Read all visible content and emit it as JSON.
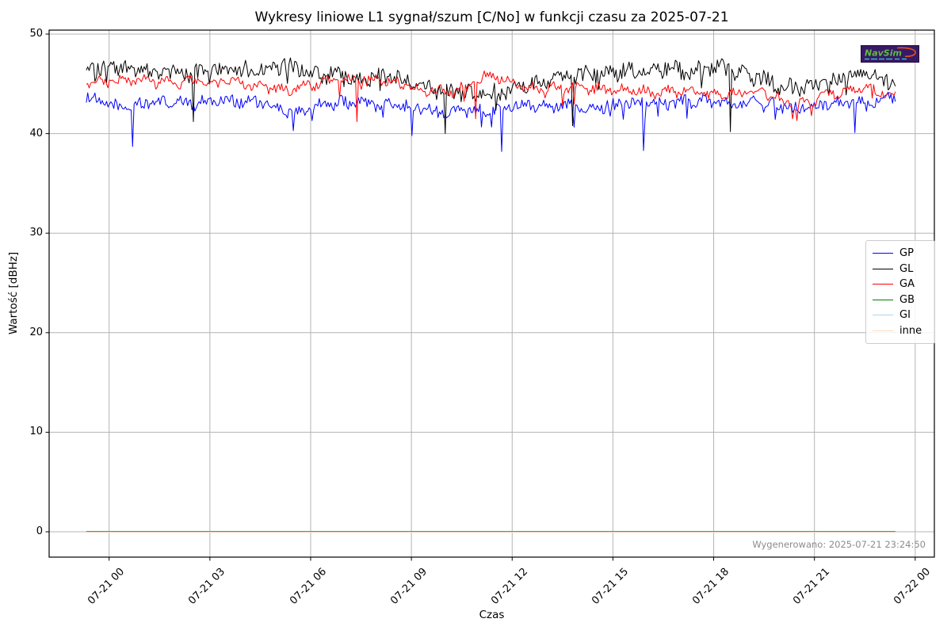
{
  "title": "Wykresy liniowe L1 sygnał/szum [C/No] w funkcji czasu za 2025-07-21",
  "xlabel": "Czas",
  "ylabel": "Wartość [dBHz]",
  "footnote": "Wygenerowano: 2025-07-21 23:24:50",
  "logo": {
    "name": "NavSim"
  },
  "axes": {
    "yticks": [
      0,
      10,
      20,
      30,
      40,
      50
    ],
    "xtick_hours": [
      0,
      3,
      6,
      9,
      12,
      15,
      18,
      21,
      24
    ],
    "xtick_labels": [
      "07-21 00",
      "07-21 03",
      "07-21 06",
      "07-21 09",
      "07-21 12",
      "07-21 15",
      "07-21 18",
      "07-21 21",
      "07-22 00"
    ],
    "ylim": [
      -2.6,
      50.4
    ],
    "grid": true,
    "grid_color": "#b4b4b4"
  },
  "legend": {
    "position": "center-right",
    "entries": [
      {
        "label": "GP",
        "color": "#0000ff"
      },
      {
        "label": "GL",
        "color": "#000000"
      },
      {
        "label": "GA",
        "color": "#ff0000"
      },
      {
        "label": "GB",
        "color": "#008000"
      },
      {
        "label": "GI",
        "color": "#add8e6"
      },
      {
        "label": "inne",
        "color": "#ffdab9"
      }
    ]
  },
  "chart_data": {
    "type": "line",
    "title": "Wykresy liniowe L1 sygnał/szum [C/No] w funkcji czasu za 2025-07-21",
    "xlabel": "Czas",
    "ylabel": "Wartość [dBHz]",
    "x_unit": "hours since 2025-07-21 00:00",
    "x_start_hours": -0.68,
    "x_end_hours": 23.41,
    "ylim": [
      -2.6,
      50.4
    ],
    "series": [
      {
        "name": "GP",
        "color": "#0000ff",
        "noise_amp": 0.55,
        "approx_mean_dBHz_hourly": [
          43.6,
          42.6,
          43.2,
          43.0,
          43.4,
          43.2,
          42.2,
          42.9,
          43.2,
          42.8,
          42.6,
          42.2,
          42.4,
          43.0,
          42.8,
          42.6,
          43.2,
          43.0,
          43.3,
          43.0,
          43.2,
          42.4,
          42.9,
          43.3,
          43.5
        ],
        "dips": [
          [
            0.7,
            38.7
          ],
          [
            5.5,
            40.3
          ],
          [
            9.0,
            39.8
          ],
          [
            11.7,
            38.2
          ],
          [
            15.9,
            38.3
          ],
          [
            22.2,
            40.1
          ]
        ]
      },
      {
        "name": "GL",
        "color": "#000000",
        "noise_amp": 0.85,
        "approx_mean_dBHz_hourly": [
          46.4,
          46.6,
          46.2,
          46.0,
          46.2,
          46.4,
          46.8,
          45.9,
          45.6,
          45.8,
          44.6,
          44.1,
          44.0,
          44.8,
          45.6,
          46.0,
          46.3,
          46.6,
          46.2,
          46.6,
          45.4,
          44.6,
          44.9,
          46.3,
          45.0
        ],
        "dips": [
          [
            2.5,
            41.2
          ],
          [
            10.0,
            40.0
          ],
          [
            13.8,
            40.8
          ],
          [
            18.5,
            40.2
          ]
        ]
      },
      {
        "name": "GA",
        "color": "#ff0000",
        "noise_amp": 0.45,
        "approx_mean_dBHz_hourly": [
          44.9,
          45.4,
          45.2,
          45.2,
          45.3,
          44.8,
          44.3,
          45.2,
          45.5,
          45.3,
          44.4,
          44.3,
          45.9,
          44.6,
          44.6,
          44.5,
          44.4,
          44.1,
          44.4,
          43.9,
          44.3,
          42.8,
          43.9,
          44.6,
          43.8
        ],
        "dips": [
          [
            7.4,
            41.2
          ],
          [
            10.9,
            41.5
          ],
          [
            20.9,
            41.8
          ]
        ]
      },
      {
        "name": "GB",
        "color": "#008000",
        "flat_value": 0
      },
      {
        "name": "GI",
        "color": "#add8e6",
        "flat_value": 0
      },
      {
        "name": "inne",
        "color": "#ffdab9",
        "flat_value": 0
      }
    ]
  }
}
